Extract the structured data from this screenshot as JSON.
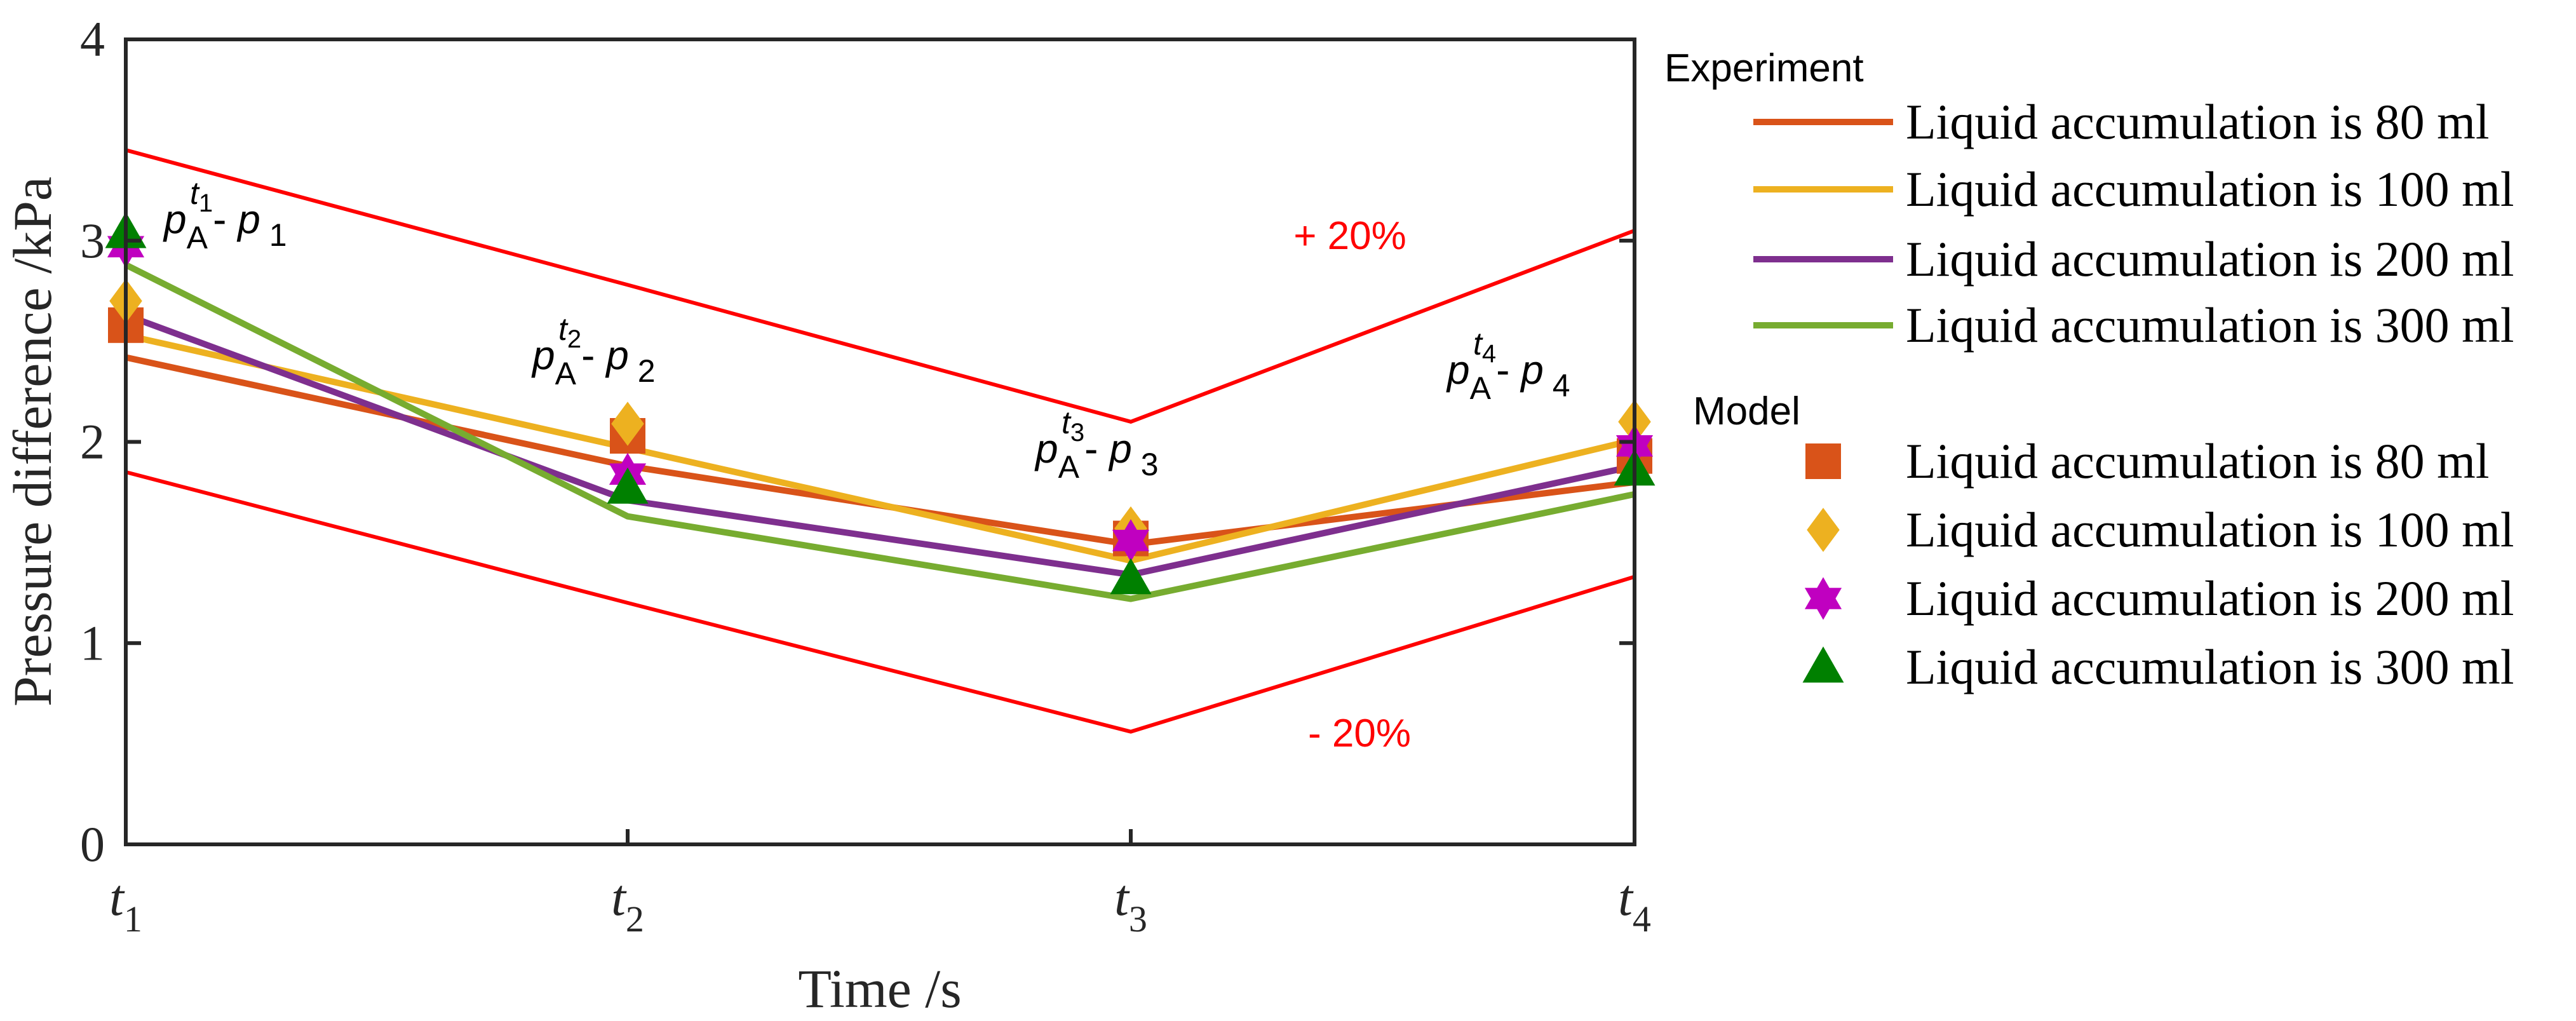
{
  "chart_data": {
    "type": "line",
    "xlabel": "Time /s",
    "ylabel": "Pressure difference /kPa",
    "ylim": [
      0,
      4
    ],
    "yticks": [
      "0",
      "1",
      "2",
      "3",
      "4"
    ],
    "grid": false,
    "categories": [
      {
        "base": "t",
        "sub": "1"
      },
      {
        "base": "t",
        "sub": "2"
      },
      {
        "base": "t",
        "sub": "3"
      },
      {
        "base": "t",
        "sub": "4"
      }
    ],
    "bounds": [
      {
        "label": "+ 20%",
        "values": [
          3.45,
          2.78,
          2.1,
          3.05
        ]
      },
      {
        "label": "- 20%",
        "values": [
          1.85,
          1.2,
          0.56,
          1.33
        ]
      }
    ],
    "experiment": {
      "heading": "Experiment",
      "series": [
        {
          "name": "Liquid accumulation is 80 ml",
          "color": "#d95319",
          "values": [
            2.42,
            1.88,
            1.49,
            1.8
          ]
        },
        {
          "name": "Liquid accumulation is 100 ml",
          "color": "#edb120",
          "values": [
            2.53,
            1.97,
            1.41,
            2.01
          ]
        },
        {
          "name": "Liquid accumulation is 200 ml",
          "color": "#7e2f8e",
          "values": [
            2.63,
            1.71,
            1.34,
            1.88
          ]
        },
        {
          "name": "Liquid accumulation is 300 ml",
          "color": "#77ac30",
          "values": [
            2.88,
            1.63,
            1.22,
            1.74
          ]
        }
      ]
    },
    "model": {
      "heading": "Model",
      "series": [
        {
          "name": "Liquid accumulation is 80 ml",
          "color": "#d95319",
          "marker": "square",
          "values": [
            2.58,
            2.03,
            1.52,
            1.93
          ]
        },
        {
          "name": "Liquid accumulation is 100 ml",
          "color": "#edb120",
          "marker": "diamond",
          "values": [
            2.7,
            2.09,
            1.57,
            2.1
          ]
        },
        {
          "name": "Liquid accumulation is 200 ml",
          "color": "#c000c0",
          "marker": "hexagram",
          "values": [
            2.97,
            1.84,
            1.51,
            1.98
          ]
        },
        {
          "name": "Liquid accumulation is 300 ml",
          "color": "#008000",
          "marker": "triangle",
          "values": [
            3.04,
            1.77,
            1.32,
            1.86
          ]
        }
      ]
    },
    "annotations": [
      {
        "p": "p",
        "A": "A",
        "t": "t",
        "n": "1",
        "dash": "- ",
        "p2": "p",
        "sub": "1"
      },
      {
        "p": "p",
        "A": "A",
        "t": "t",
        "n": "2",
        "dash": "- ",
        "p2": "p",
        "sub": "2"
      },
      {
        "p": "p",
        "A": "A",
        "t": "t",
        "n": "3",
        "dash": "- ",
        "p2": "p",
        "sub": "3"
      },
      {
        "p": "p",
        "A": "A",
        "t": "t",
        "n": "4",
        "dash": "- ",
        "p2": "p",
        "sub": "4"
      }
    ]
  }
}
